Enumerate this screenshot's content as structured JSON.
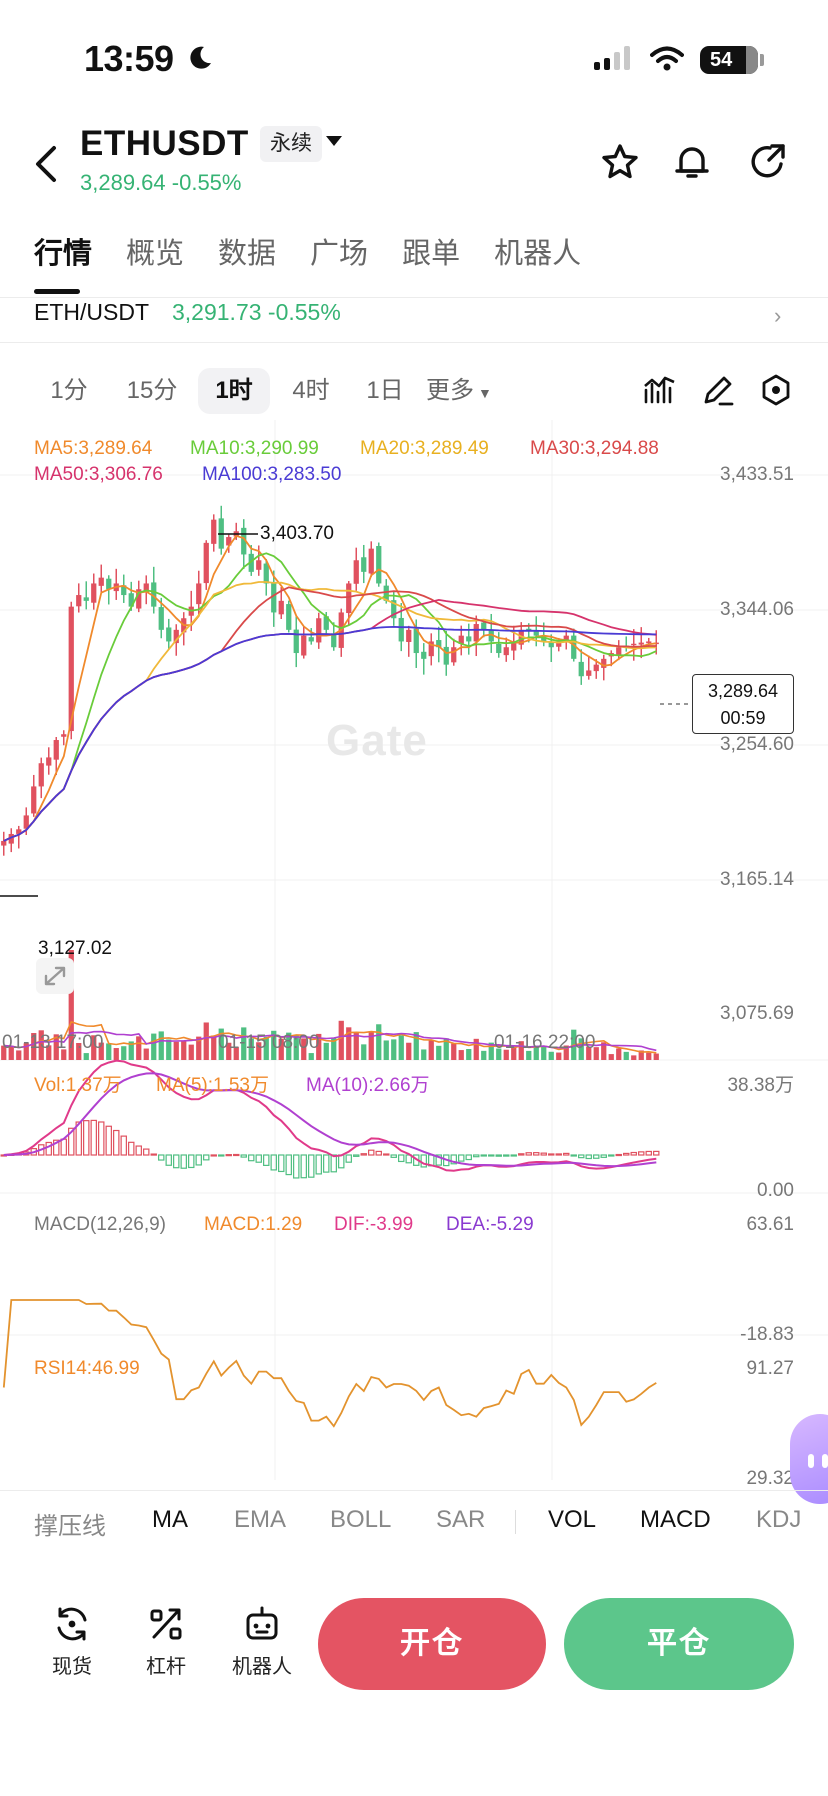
{
  "status_bar": {
    "time": "13:59",
    "battery": "54"
  },
  "header": {
    "symbol": "ETHUSDT",
    "contract_type": "永续",
    "price": "3,289.64",
    "change": "-0.55%"
  },
  "tabs": [
    {
      "label": "行情",
      "active": true
    },
    {
      "label": "概览"
    },
    {
      "label": "数据"
    },
    {
      "label": "广场"
    },
    {
      "label": "跟单"
    },
    {
      "label": "机器人"
    }
  ],
  "pair_row": {
    "pair": "ETH/USDT",
    "price": "3,291.73",
    "change": "-0.55%"
  },
  "timeframes": [
    {
      "label": "1分"
    },
    {
      "label": "15分"
    },
    {
      "label": "1时",
      "active": true
    },
    {
      "label": "4时"
    },
    {
      "label": "1日"
    },
    {
      "label": "更多"
    }
  ],
  "ma_legend": {
    "ma5": "MA5:3,289.64",
    "ma10": "MA10:3,290.99",
    "ma20": "MA20:3,289.49",
    "ma30": "MA30:3,294.88",
    "ma50": "MA50:3,306.76",
    "ma100": "MA100:3,283.50"
  },
  "colors": {
    "up": "#e0515f",
    "down": "#4fbf82",
    "ma5": "#f08a2c",
    "ma10": "#69cc3a",
    "ma20": "#f0b93a",
    "ma30": "#d94a4a",
    "ma50": "#d6336c",
    "ma100": "#4a3bd4",
    "accent_green": "#36b374"
  },
  "price_axis": [
    "3,433.51",
    "3,344.06",
    "3,254.60",
    "3,165.14",
    "3,075.69"
  ],
  "time_axis": [
    "01-13 17:00",
    "01-15 08:00",
    "01-16 22:00"
  ],
  "annotations": {
    "high": "3,403.70",
    "low": "3,127.02"
  },
  "last_price": {
    "price": "3,289.64",
    "countdown": "00:59"
  },
  "watermark": "Gate",
  "volume": {
    "legend_vol": "Vol:1.37万",
    "legend_ma5": "MA(5):1.53万",
    "legend_ma10": "MA(10):2.66万",
    "max": "38.38万",
    "min": "0.00"
  },
  "macd": {
    "legend_title": "MACD(12,26,9)",
    "legend_macd": "MACD:1.29",
    "legend_dif": "DIF:-3.99",
    "legend_dea": "DEA:-5.29",
    "max": "63.61",
    "min": "-18.83"
  },
  "rsi": {
    "legend": "RSI14:46.99",
    "max": "91.27",
    "min": "29.32"
  },
  "indicators": [
    {
      "label": "撑压线",
      "on": false
    },
    {
      "label": "MA",
      "on": true
    },
    {
      "label": "EMA",
      "on": false
    },
    {
      "label": "BOLL",
      "on": false
    },
    {
      "label": "SAR",
      "on": false
    },
    {
      "label": "VOL",
      "on": true
    },
    {
      "label": "MACD",
      "on": true
    },
    {
      "label": "KDJ",
      "on": false
    }
  ],
  "bottom_bar": {
    "spot": "现货",
    "leverage": "杠杆",
    "bot": "机器人",
    "open": "开仓",
    "close": "平仓"
  },
  "chart_data": {
    "type": "candlestick",
    "interval": "1h",
    "y_range": [
      3075.69,
      3433.51
    ],
    "close_series": [
      3118,
      3124,
      3128,
      3140,
      3165,
      3185,
      3190,
      3205,
      3210,
      3320,
      3330,
      3325,
      3340,
      3345,
      3335,
      3340,
      3330,
      3320,
      3335,
      3340,
      3320,
      3300,
      3290,
      3300,
      3310,
      3320,
      3340,
      3375,
      3395,
      3370,
      3380,
      3385,
      3365,
      3350,
      3360,
      3340,
      3315,
      3325,
      3300,
      3280,
      3295,
      3290,
      3310,
      3300,
      3285,
      3315,
      3340,
      3360,
      3350,
      3370,
      3340,
      3325,
      3310,
      3290,
      3300,
      3280,
      3275,
      3290,
      3285,
      3270,
      3285,
      3295,
      3290,
      3305,
      3300,
      3290,
      3280,
      3285,
      3290,
      3300,
      3300,
      3295,
      3290,
      3285,
      3290,
      3295,
      3275,
      3260,
      3265,
      3270,
      3275,
      3280,
      3285,
      3286,
      3288,
      3289,
      3290,
      3289
    ]
  }
}
